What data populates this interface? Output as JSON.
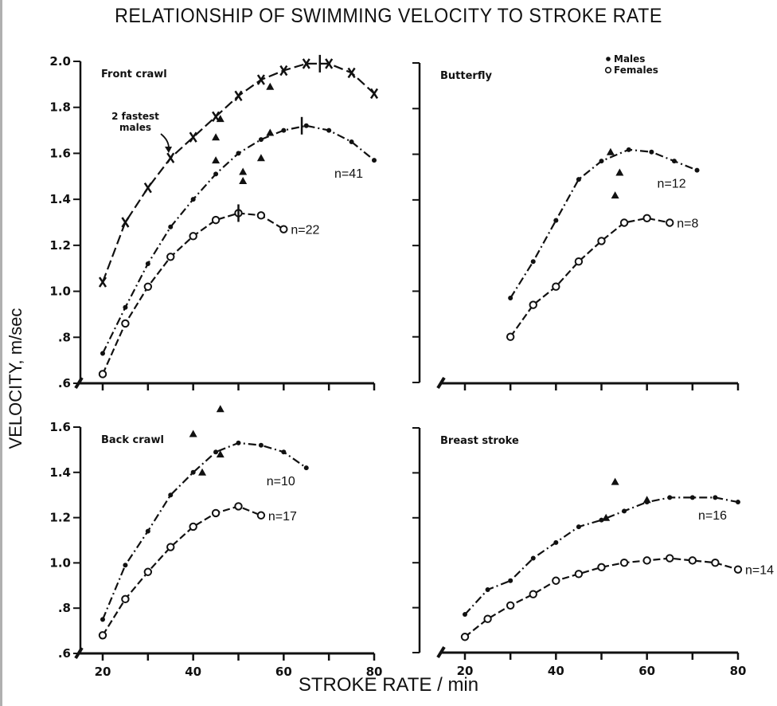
{
  "chart_data": {
    "type": "line",
    "title": "RELATIONSHIP OF SWIMMING VELOCITY TO STROKE RATE",
    "xlabel": "STROKE RATE / min",
    "ylabel": "VELOCITY, m/sec",
    "legend": [
      {
        "symbol": "filled-dot",
        "label": "Males"
      },
      {
        "symbol": "open-circle",
        "label": "Females"
      }
    ],
    "legend_placement": "top-right panel, top",
    "panels": [
      {
        "id": "front-crawl",
        "title": "Front crawl",
        "position": "top-left",
        "xlim": [
          15,
          80
        ],
        "xticks": [
          20,
          30,
          40,
          50,
          60,
          70,
          80
        ],
        "xtick_labels": [],
        "ylim": [
          0.6,
          2.0
        ],
        "yticks": [
          0.6,
          0.8,
          1.0,
          1.2,
          1.4,
          1.6,
          1.8,
          2.0
        ],
        "ytick_labels": [
          ".6",
          ".8",
          "1.0",
          "1.2",
          "1.4",
          "1.6",
          "1.8",
          "2.0"
        ],
        "annotation": "2 fastest males",
        "series": [
          {
            "name": "2 fastest males",
            "marker": "x",
            "n_label": "",
            "x": [
              20,
              25,
              30,
              35,
              40,
              45,
              50,
              55,
              60,
              65,
              70,
              75,
              80
            ],
            "y": [
              1.04,
              1.3,
              1.45,
              1.58,
              1.67,
              1.76,
              1.85,
              1.92,
              1.96,
              1.99,
              1.99,
              1.95,
              1.86
            ]
          },
          {
            "name": "Males",
            "marker": "filled-dot",
            "n_label": "n=41",
            "x": [
              20,
              25,
              30,
              35,
              40,
              45,
              50,
              55,
              60,
              65,
              70,
              75,
              80
            ],
            "y": [
              0.73,
              0.93,
              1.12,
              1.28,
              1.4,
              1.51,
              1.6,
              1.66,
              1.7,
              1.72,
              1.7,
              1.65,
              1.57
            ]
          },
          {
            "name": "Females",
            "marker": "open-circle",
            "n_label": "n=22",
            "x": [
              20,
              25,
              30,
              35,
              40,
              45,
              50,
              55,
              60
            ],
            "y": [
              0.64,
              0.86,
              1.02,
              1.15,
              1.24,
              1.31,
              1.34,
              1.33,
              1.27
            ]
          }
        ],
        "triangles": [
          [
            45,
            1.67
          ],
          [
            45,
            1.57
          ],
          [
            51,
            1.52
          ],
          [
            51,
            1.48
          ],
          [
            55,
            1.58
          ],
          [
            57,
            1.89
          ],
          [
            46,
            1.75
          ],
          [
            57,
            1.69
          ]
        ],
        "peak_marks": [
          [
            68,
            1.99
          ],
          [
            64,
            1.72
          ],
          [
            50,
            1.34
          ]
        ]
      },
      {
        "id": "butterfly",
        "title": "Butterfly",
        "position": "top-right",
        "xlim": [
          15,
          80
        ],
        "xticks": [
          20,
          30,
          40,
          50,
          60,
          70,
          80
        ],
        "xtick_labels": [],
        "ylim": [
          0.6,
          2.0
        ],
        "yticks": [
          0.6,
          0.8,
          1.0,
          1.2,
          1.4,
          1.6,
          1.8,
          2.0
        ],
        "ytick_labels": [],
        "series": [
          {
            "name": "Males",
            "marker": "filled-dot",
            "n_label": "n=12",
            "x": [
              30,
              35,
              40,
              45,
              50,
              56,
              61,
              66,
              71
            ],
            "y": [
              0.97,
              1.13,
              1.31,
              1.49,
              1.57,
              1.62,
              1.61,
              1.57,
              1.53
            ]
          },
          {
            "name": "Females",
            "marker": "open-circle",
            "n_label": "n=8",
            "x": [
              30,
              35,
              40,
              45,
              50,
              55,
              60,
              65
            ],
            "y": [
              0.8,
              0.94,
              1.02,
              1.13,
              1.22,
              1.3,
              1.32,
              1.3
            ]
          }
        ],
        "triangles": [
          [
            52,
            1.61
          ],
          [
            54,
            1.52
          ],
          [
            53,
            1.42
          ]
        ]
      },
      {
        "id": "back-crawl",
        "title": "Back crawl",
        "position": "bottom-left",
        "xlim": [
          15,
          80
        ],
        "xticks": [
          20,
          30,
          40,
          50,
          60,
          70,
          80
        ],
        "xtick_labels": [
          "20",
          "",
          "40",
          "",
          "60",
          "",
          "80"
        ],
        "ylim": [
          0.6,
          1.6
        ],
        "yticks": [
          0.6,
          0.8,
          1.0,
          1.2,
          1.4,
          1.6
        ],
        "ytick_labels": [
          ".6",
          ".8",
          "1.0",
          "1.2",
          "1.4",
          "1.6"
        ],
        "series": [
          {
            "name": "Males",
            "marker": "filled-dot",
            "n_label": "n=10",
            "x": [
              20,
              25,
              30,
              35,
              40,
              45,
              50,
              55,
              60,
              65
            ],
            "y": [
              0.75,
              0.99,
              1.14,
              1.3,
              1.4,
              1.49,
              1.53,
              1.52,
              1.49,
              1.42
            ]
          },
          {
            "name": "Females",
            "marker": "open-circle",
            "n_label": "n=17",
            "x": [
              20,
              25,
              30,
              35,
              40,
              45,
              50,
              55
            ],
            "y": [
              0.68,
              0.84,
              0.96,
              1.07,
              1.16,
              1.22,
              1.25,
              1.21
            ]
          }
        ],
        "triangles": [
          [
            40,
            1.57
          ],
          [
            46,
            1.68
          ],
          [
            42,
            1.4
          ],
          [
            46,
            1.48
          ]
        ]
      },
      {
        "id": "breast-stroke",
        "title": "Breast stroke",
        "position": "bottom-right",
        "xlim": [
          15,
          80
        ],
        "xticks": [
          20,
          30,
          40,
          50,
          60,
          70,
          80
        ],
        "xtick_labels": [
          "20",
          "",
          "40",
          "",
          "60",
          "",
          "80"
        ],
        "ylim": [
          0.6,
          1.6
        ],
        "yticks": [
          0.6,
          0.8,
          1.0,
          1.2,
          1.4,
          1.6
        ],
        "ytick_labels": [],
        "series": [
          {
            "name": "Males",
            "marker": "filled-dot",
            "n_label": "n=16",
            "x": [
              20,
              25,
              30,
              35,
              40,
              45,
              50,
              55,
              60,
              65,
              70,
              75,
              80
            ],
            "y": [
              0.77,
              0.88,
              0.92,
              1.02,
              1.09,
              1.16,
              1.19,
              1.23,
              1.27,
              1.29,
              1.29,
              1.29,
              1.27
            ]
          },
          {
            "name": "Females",
            "marker": "open-circle",
            "n_label": "n=14",
            "x": [
              20,
              25,
              30,
              35,
              40,
              45,
              50,
              55,
              60,
              65,
              70,
              75,
              80
            ],
            "y": [
              0.67,
              0.75,
              0.81,
              0.86,
              0.92,
              0.95,
              0.98,
              1.0,
              1.01,
              1.02,
              1.01,
              1.0,
              0.97
            ]
          }
        ],
        "triangles": [
          [
            53,
            1.36
          ],
          [
            60,
            1.28
          ],
          [
            51,
            1.2
          ]
        ]
      }
    ]
  }
}
